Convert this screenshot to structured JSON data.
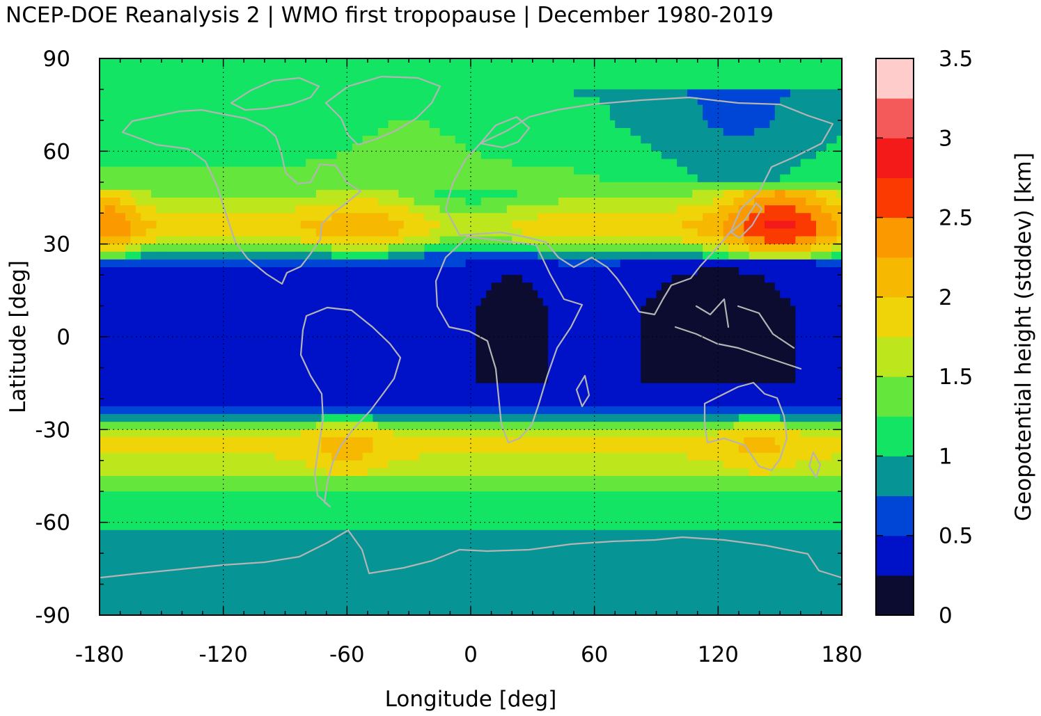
{
  "chart_data": {
    "type": "heatmap",
    "title": "NCEP-DOE Reanalysis 2 | WMO first tropopause | December 1980-2019",
    "xlabel": "Longitude [deg]",
    "ylabel": "Latitude [deg]",
    "colorbar_label": "Geopotential height (stddev) [km]",
    "xlim": [
      -180,
      180
    ],
    "ylim": [
      -90,
      90
    ],
    "x_ticks": [
      -180,
      -120,
      -60,
      0,
      60,
      120,
      180
    ],
    "y_ticks": [
      -90,
      -60,
      -30,
      0,
      30,
      60,
      90
    ],
    "x_tick_labels": [
      "-180",
      "-120",
      "-60",
      "0",
      "60",
      "120",
      "180"
    ],
    "y_tick_labels": [
      "-90",
      "-60",
      "-30",
      "0",
      "30",
      "60",
      "90"
    ],
    "grid": true,
    "colorbar": {
      "range": [
        0,
        3.5
      ],
      "step": 0.25,
      "tick_values": [
        0,
        0.5,
        1,
        1.5,
        2,
        2.5,
        3,
        3.5
      ],
      "tick_labels": [
        "0",
        "0.5",
        "1",
        "1.5",
        "2",
        "2.5",
        "3",
        "3.5"
      ],
      "colors": [
        "#0c0c30",
        "#0012c8",
        "#0046d6",
        "#069494",
        "#14e464",
        "#64e63c",
        "#bee61c",
        "#eed408",
        "#f6b800",
        "#fa9a00",
        "#fa3a00",
        "#f41a1a",
        "#f45a5a",
        "#ffcccc"
      ]
    },
    "zonal_profile": {
      "note_unit": "km",
      "lat": [
        -90,
        -85,
        -80,
        -75,
        -70,
        -65,
        -60,
        -55,
        -50,
        -45,
        -40,
        -35,
        -30,
        -25,
        -20,
        -15,
        -10,
        -5,
        0,
        5,
        10,
        15,
        20,
        25,
        30,
        35,
        40,
        45,
        50,
        55,
        60,
        65,
        70,
        75,
        80,
        85,
        90
      ],
      "value": [
        0.9,
        0.95,
        1.0,
        0.85,
        0.8,
        0.85,
        1.05,
        1.1,
        1.2,
        1.45,
        1.7,
        1.85,
        1.6,
        0.55,
        0.4,
        0.35,
        0.35,
        0.35,
        0.35,
        0.35,
        0.35,
        0.4,
        0.45,
        0.6,
        1.6,
        2.0,
        1.8,
        1.45,
        1.3,
        1.25,
        1.15,
        1.1,
        1.05,
        1.05,
        1.0,
        1.0,
        1.0
      ]
    }
  }
}
